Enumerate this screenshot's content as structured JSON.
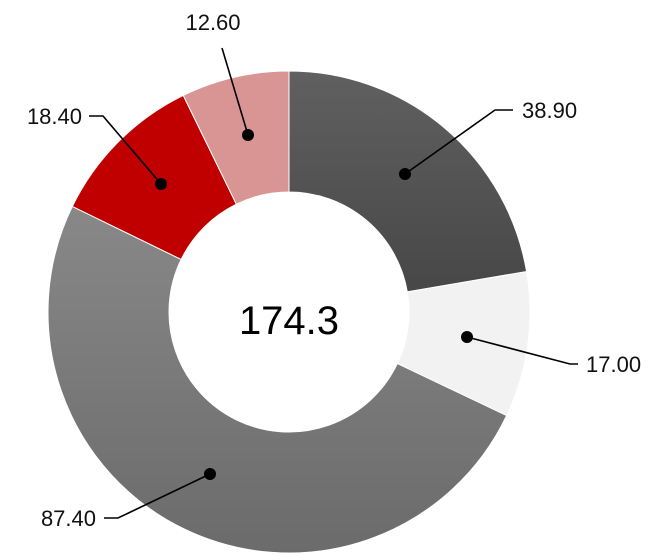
{
  "chart_data": {
    "type": "pie",
    "variant": "donut",
    "center_label": "174.3",
    "slices": [
      {
        "value": 38.9,
        "label": "38.90",
        "color": "#575757"
      },
      {
        "value": 17.0,
        "label": "17.00",
        "color": "#f2f2f2"
      },
      {
        "value": 87.4,
        "label": "87.40",
        "color": "#7a7a7a"
      },
      {
        "value": 18.4,
        "label": "18.40",
        "color": "#c00000"
      },
      {
        "value": 12.6,
        "label": "12.60",
        "color": "#d99594"
      }
    ]
  }
}
